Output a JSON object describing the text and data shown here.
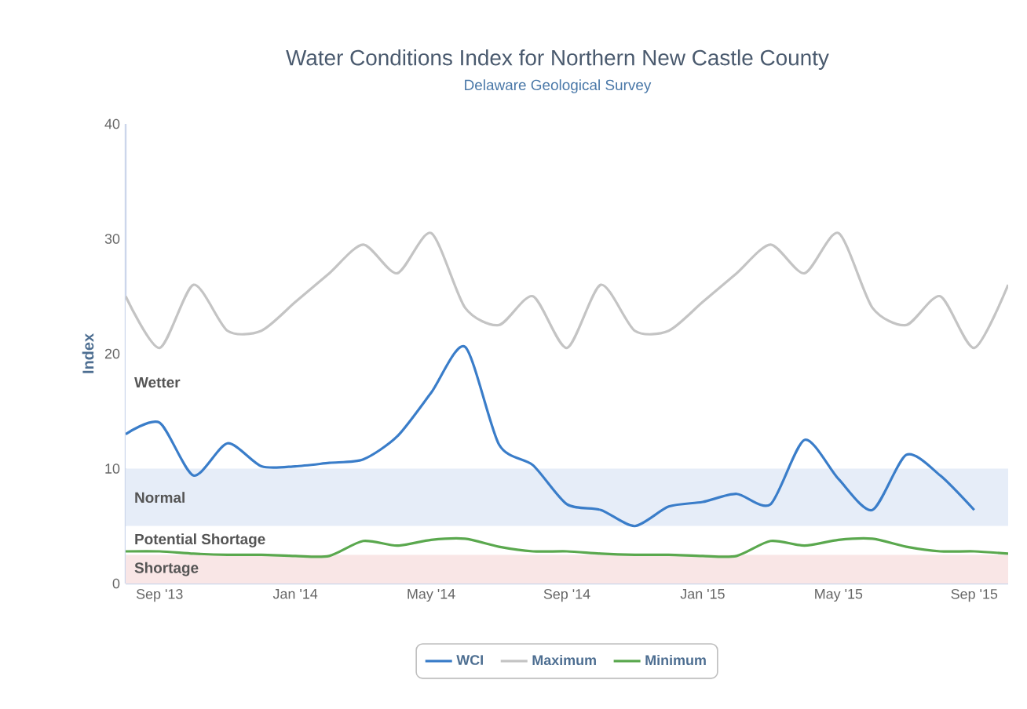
{
  "chart_data": {
    "type": "line",
    "title": "Water Conditions Index for Northern New Castle County",
    "subtitle": "Delaware Geological Survey",
    "ylabel": "Index",
    "x": [
      "2013-08",
      "2013-09",
      "2013-10",
      "2013-11",
      "2013-12",
      "2014-01",
      "2014-02",
      "2014-03",
      "2014-04",
      "2014-05",
      "2014-06",
      "2014-07",
      "2014-08",
      "2014-09",
      "2014-10",
      "2014-11",
      "2014-12",
      "2015-01",
      "2015-02",
      "2015-03",
      "2015-04",
      "2015-05",
      "2015-06",
      "2015-07",
      "2015-08",
      "2015-09",
      "2015-10"
    ],
    "series": [
      {
        "name": "WCI",
        "color": "#3a7dc9",
        "values": [
          13.0,
          14.0,
          9.4,
          12.2,
          10.2,
          10.2,
          10.5,
          10.8,
          12.8,
          16.6,
          20.6,
          12.1,
          10.3,
          6.9,
          6.4,
          5.0,
          6.7,
          7.1,
          7.8,
          6.9,
          12.5,
          9.1,
          6.4,
          11.2,
          9.4,
          6.4,
          null
        ]
      },
      {
        "name": "Maximum",
        "color": "#c4c4c4",
        "values": [
          25,
          20.5,
          26,
          22,
          22,
          24.5,
          27,
          29.5,
          27,
          30.5,
          24,
          22.5,
          25,
          20.5,
          26,
          22,
          22,
          24.5,
          27,
          29.5,
          27,
          30.5,
          24,
          22.5,
          25,
          20.5,
          26
        ]
      },
      {
        "name": "Minimum",
        "color": "#5aa84e",
        "values": [
          2.8,
          2.8,
          2.6,
          2.5,
          2.5,
          2.4,
          2.4,
          3.7,
          3.3,
          3.8,
          3.9,
          3.2,
          2.8,
          2.8,
          2.6,
          2.5,
          2.5,
          2.4,
          2.4,
          3.7,
          3.3,
          3.8,
          3.9,
          3.2,
          2.8,
          2.8,
          2.6
        ]
      }
    ],
    "xlim": [
      "2013-08",
      "2015-10"
    ],
    "xticks": [
      {
        "value": "2013-09",
        "label": "Sep '13"
      },
      {
        "value": "2014-01",
        "label": "Jan '14"
      },
      {
        "value": "2014-05",
        "label": "May '14"
      },
      {
        "value": "2014-09",
        "label": "Sep '14"
      },
      {
        "value": "2015-01",
        "label": "Jan '15"
      },
      {
        "value": "2015-05",
        "label": "May '15"
      },
      {
        "value": "2015-09",
        "label": "Sep '15"
      }
    ],
    "ylim": [
      0,
      40
    ],
    "yticks": [
      0,
      10,
      20,
      30,
      40
    ],
    "bands": [
      {
        "axis": "y",
        "from": 10,
        "to": 25,
        "label": "Wetter",
        "color": "#ffffff"
      },
      {
        "axis": "y",
        "from": 5,
        "to": 10,
        "label": "Normal",
        "color": "#e6edf8"
      },
      {
        "axis": "y",
        "from": 2.5,
        "to": 5,
        "label": "Potential Shortage",
        "color": "#ffffff"
      },
      {
        "axis": "y",
        "from": 0,
        "to": 2.5,
        "label": "Shortage",
        "color": "#f9e6e6"
      }
    ],
    "grid": false,
    "legend": "bottom"
  }
}
